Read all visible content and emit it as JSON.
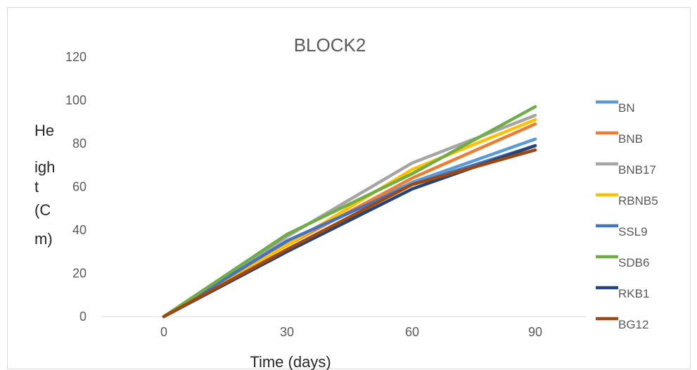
{
  "chart_data": {
    "type": "line",
    "title": "BLOCK2",
    "xlabel": "Time (days)",
    "ylabel": "Height (Cm)",
    "ylabel_lines": [
      "He",
      "igh",
      "t",
      "(C",
      "m)"
    ],
    "categories": [
      "0",
      "30",
      "60",
      "90"
    ],
    "ylim": [
      0,
      120
    ],
    "yticks": [
      "0",
      "20",
      "40",
      "60",
      "80",
      "100",
      "120"
    ],
    "grid": false,
    "legend_position": "right",
    "series": [
      {
        "name": "BN",
        "color": "#5b9bd5",
        "values": [
          0,
          34,
          62,
          82
        ]
      },
      {
        "name": "BNB",
        "color": "#ed7d31",
        "values": [
          0,
          33,
          64,
          89
        ]
      },
      {
        "name": "BNB17",
        "color": "#a5a5a5",
        "values": [
          0,
          37,
          71,
          93
        ]
      },
      {
        "name": "RBNB5",
        "color": "#ffc000",
        "values": [
          0,
          33,
          68,
          91
        ]
      },
      {
        "name": "SSL9",
        "color": "#4472c4",
        "values": [
          0,
          35,
          61,
          79
        ]
      },
      {
        "name": "SDB6",
        "color": "#70ad47",
        "values": [
          0,
          38,
          66,
          97
        ]
      },
      {
        "name": "RKB1",
        "color": "#264478",
        "values": [
          0,
          30,
          59,
          79
        ]
      },
      {
        "name": "BG12",
        "color": "#9e480e",
        "values": [
          0,
          31,
          61,
          77
        ]
      }
    ]
  }
}
